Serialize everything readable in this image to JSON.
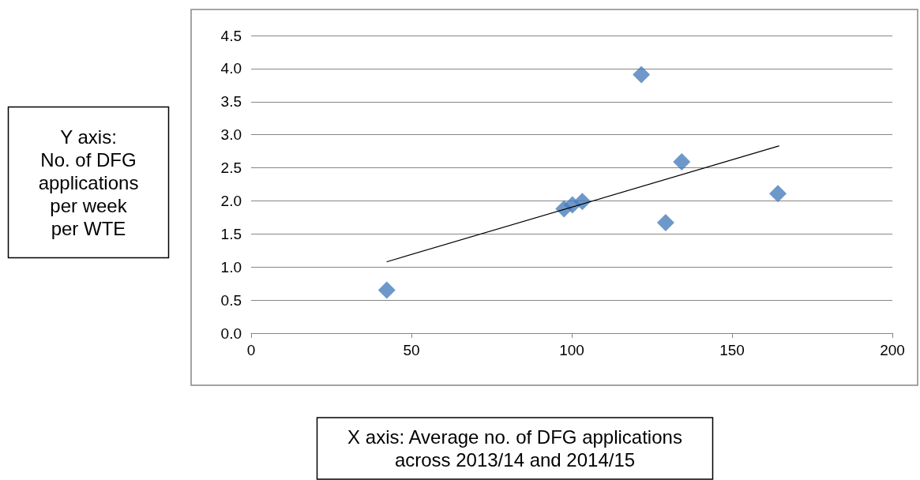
{
  "chart_data": {
    "type": "scatter",
    "xlabel": "X axis: Average no. of DFG applications\nacross 2013/14 and 2014/15",
    "ylabel": "Y axis:\nNo. of DFG\napplications\nper week\nper WTE",
    "series": [
      {
        "color": "#4a7ebb",
        "marker": "diamond",
        "x": [
          42.3,
          97.6,
          100.2,
          103.3,
          121.7,
          129.3,
          134.3,
          164.3
        ],
        "values": [
          0.65,
          1.88,
          1.94,
          1.99,
          3.91,
          1.67,
          2.59,
          2.11
        ]
      },
      {
        "type": "line",
        "color": "#000000",
        "marker": "none",
        "x": [
          42.4,
          164.6
        ],
        "values": [
          1.08,
          2.83
        ]
      }
    ],
    "xlim": [
      0,
      200
    ],
    "xticks": [
      0,
      50,
      100,
      150,
      200
    ],
    "ylim": [
      0,
      4.5
    ],
    "yticks": [
      {
        "value": 0,
        "label": "0.0"
      },
      {
        "value": 0.5,
        "label": "0.5"
      },
      {
        "value": 1,
        "label": "1.0"
      },
      {
        "value": 1.5,
        "label": "1.5"
      },
      {
        "value": 2,
        "label": "2.0"
      },
      {
        "value": 2.5,
        "label": "2.5"
      },
      {
        "value": 3,
        "label": "3.0"
      },
      {
        "value": 3.5,
        "label": "3.5"
      },
      {
        "value": 4,
        "label": "4.0"
      },
      {
        "value": 4.5,
        "label": "4.5"
      }
    ],
    "grid": "y"
  }
}
